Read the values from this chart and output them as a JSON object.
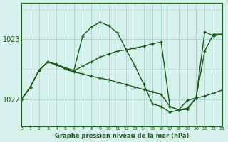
{
  "bg_color": "#d6f0ec",
  "grid_color": "#a8d8cc",
  "line_color": "#1a5c1a",
  "xlabel": "Graphe pression niveau de la mer (hPa)",
  "yticks": [
    1022,
    1023
  ],
  "xlim": [
    0,
    23
  ],
  "ylim": [
    1021.55,
    1023.6
  ],
  "figsize": [
    3.2,
    2.0
  ],
  "dpi": 100,
  "series": [
    {
      "x": [
        0,
        1,
        2,
        3,
        4,
        5,
        6,
        7,
        8,
        9,
        10,
        11,
        12,
        13,
        14,
        15,
        16,
        17,
        18,
        19,
        20,
        21,
        22,
        23
      ],
      "y": [
        1022.0,
        1022.2,
        1022.48,
        1022.62,
        1022.58,
        1022.52,
        1022.48,
        1023.05,
        1023.2,
        1023.28,
        1023.22,
        1023.1,
        1022.82,
        1022.55,
        1022.25,
        1021.92,
        1021.88,
        1021.78,
        1021.82,
        1021.98,
        1022.02,
        1023.12,
        1023.05,
        1023.08
      ]
    },
    {
      "x": [
        0,
        1,
        2,
        3,
        4,
        5,
        6,
        7,
        8,
        9,
        10,
        11,
        12,
        13,
        14,
        15,
        16,
        17,
        18,
        19,
        20,
        21,
        22,
        23
      ],
      "y": [
        1022.0,
        1022.2,
        1022.48,
        1022.62,
        1022.57,
        1022.52,
        1022.47,
        1022.55,
        1022.62,
        1022.7,
        1022.75,
        1022.8,
        1022.82,
        1022.85,
        1022.88,
        1022.92,
        1022.95,
        1021.88,
        1021.82,
        1021.85,
        1022.02,
        1022.8,
        1023.08,
        1023.08
      ]
    },
    {
      "x": [
        0,
        1,
        2,
        3,
        4,
        5,
        6,
        7,
        8,
        9,
        10,
        11,
        12,
        13,
        14,
        15,
        16,
        17,
        18,
        19,
        20,
        21,
        22,
        23
      ],
      "y": [
        1022.0,
        1022.2,
        1022.48,
        1022.62,
        1022.57,
        1022.5,
        1022.45,
        1022.42,
        1022.38,
        1022.35,
        1022.32,
        1022.28,
        1022.24,
        1022.2,
        1022.16,
        1022.12,
        1022.08,
        1021.88,
        1021.82,
        1021.83,
        1022.02,
        1022.05,
        1022.1,
        1022.15
      ]
    }
  ]
}
